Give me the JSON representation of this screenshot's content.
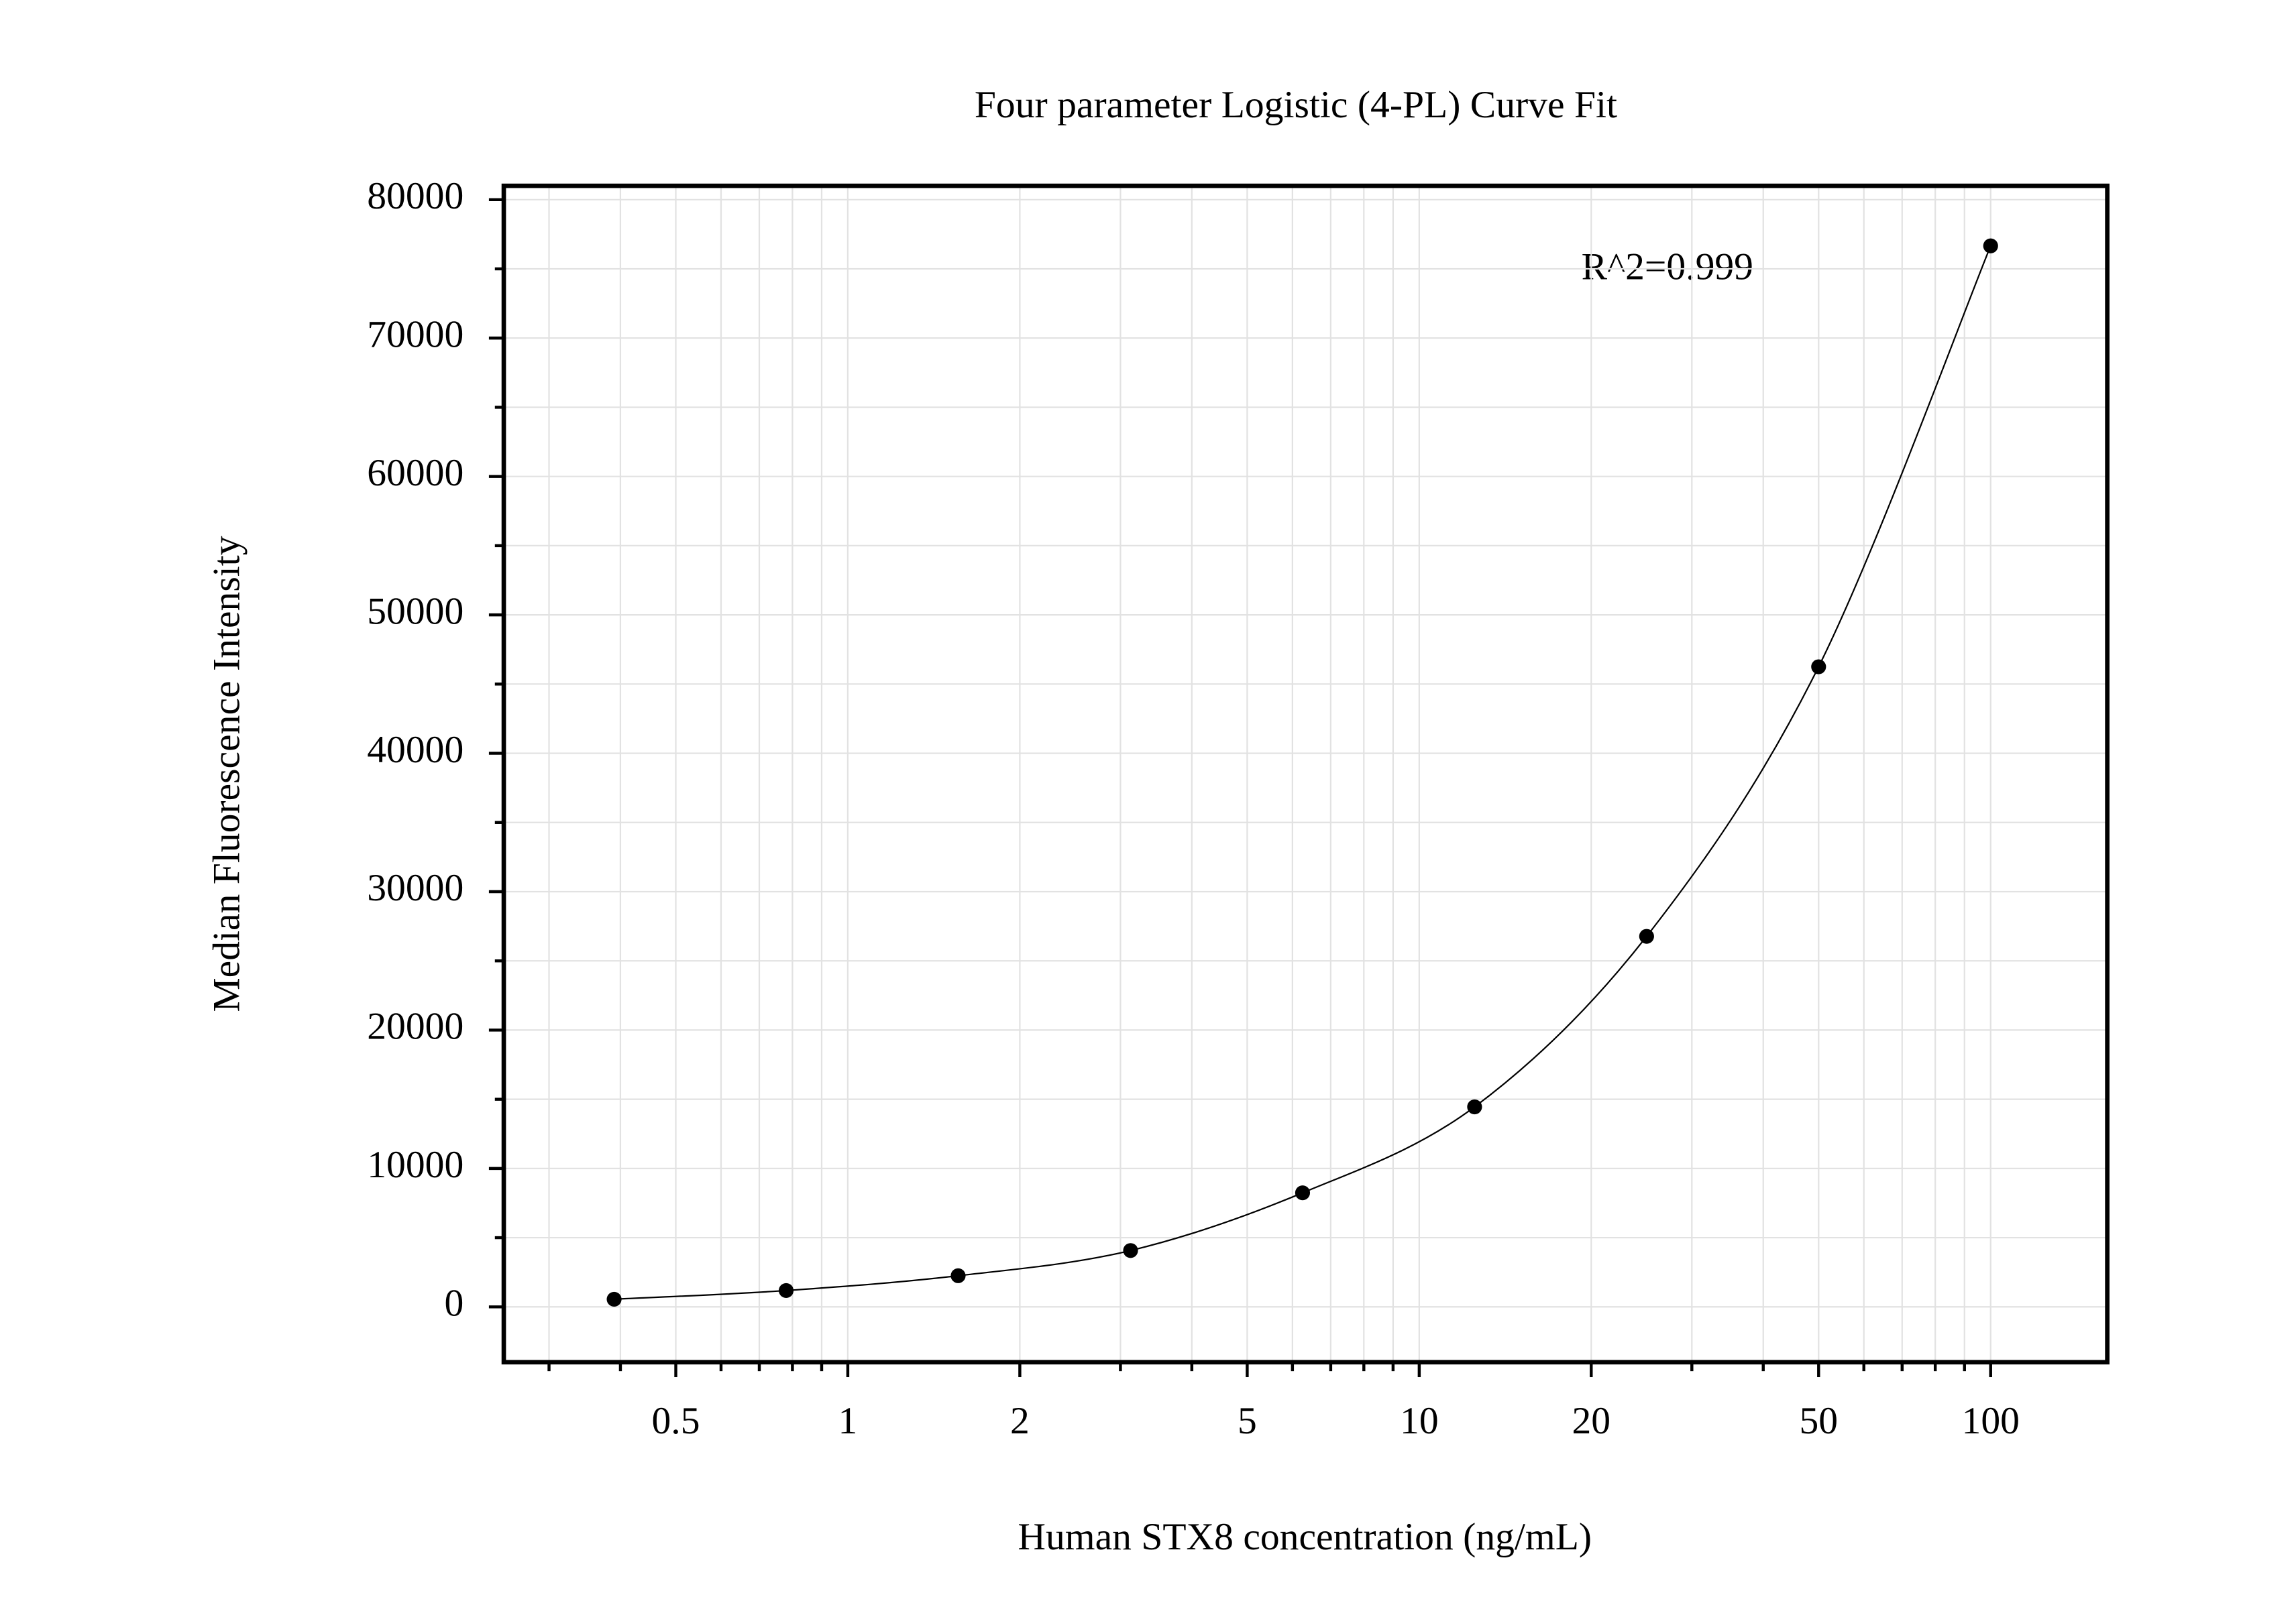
{
  "chart_data": {
    "type": "scatter",
    "title": "Four parameter Logistic (4-PL) Curve Fit",
    "x_label": "Human STX8 concentration (ng/mL)",
    "y_label": "Median Fluorescence Intensity",
    "annotation": "R^2=0.999",
    "x": [
      0.39,
      0.78,
      1.56,
      3.125,
      6.25,
      12.5,
      25,
      50,
      100
    ],
    "series": [
      {
        "color": "#000000",
        "values": [
          550,
          1180,
          2250,
          4070,
          8240,
          14450,
          26770,
          46250,
          76660
        ]
      }
    ],
    "fit_line": true,
    "xscale": "log",
    "xlim": [
      0.25,
      160
    ],
    "xticks": [
      0.5,
      1,
      2,
      5,
      10,
      20,
      50,
      100
    ],
    "xminor": [
      0.3,
      0.4,
      0.6,
      0.7,
      0.8,
      0.9,
      3,
      4,
      6,
      7,
      8,
      9,
      30,
      40,
      60,
      70,
      80,
      90
    ],
    "ylim": [
      -4000,
      81000
    ],
    "yticks": [
      0,
      10000,
      20000,
      30000,
      40000,
      50000,
      60000,
      70000,
      80000
    ],
    "yminor": [
      5000,
      15000,
      25000,
      35000,
      45000,
      55000,
      65000,
      75000
    ],
    "grid": true
  }
}
